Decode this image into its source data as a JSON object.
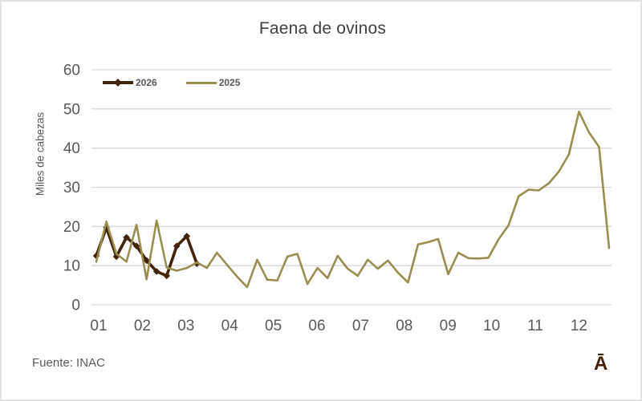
{
  "chart": {
    "title": "Faena de ovinos",
    "y_axis_title": "Miles de cabezas",
    "source": "Fuente: INAC",
    "watermark": "Ā",
    "colors": {
      "grid": "#d9d9d9",
      "title_text": "#404040",
      "axis_text": "#595959",
      "series_2026": "#44230d",
      "series_2025": "#9a8e4f"
    }
  },
  "chart_data": {
    "type": "line",
    "title": "Faena de ovinos",
    "ylabel": "Miles de cabezas",
    "xlabel": "",
    "x_unit": "weekly points across one year (52 weeks)",
    "x_tick_labels": [
      "01",
      "02",
      "03",
      "04",
      "05",
      "06",
      "07",
      "08",
      "09",
      "10",
      "11",
      "12"
    ],
    "y_ticks": [
      0,
      10,
      20,
      30,
      40,
      50,
      60
    ],
    "ylim": [
      0,
      60
    ],
    "grid": "horizontal",
    "legend_position": "top-left-inside",
    "series": [
      {
        "name": "2026",
        "color": "#44230d",
        "marker": "diamond",
        "values": [
          12.5,
          19.7,
          12.3,
          17.2,
          15.0,
          11.3,
          8.5,
          7.4,
          15.0,
          17.5,
          10.5
        ]
      },
      {
        "name": "2025",
        "color": "#9a8e4f",
        "marker": "none",
        "values": [
          11.0,
          21.2,
          13.0,
          11.0,
          20.4,
          6.5,
          21.5,
          9.5,
          8.7,
          9.4,
          10.8,
          9.4,
          13.3,
          10.2,
          7.2,
          4.5,
          11.5,
          6.4,
          6.2,
          12.3,
          13.0,
          5.3,
          9.4,
          6.8,
          12.5,
          9.2,
          7.4,
          11.5,
          9.2,
          11.3,
          8.2,
          5.7,
          15.4,
          16.0,
          16.8,
          7.8,
          13.3,
          11.9,
          11.8,
          12.0,
          16.7,
          20.3,
          27.7,
          29.4,
          29.2,
          31.0,
          34.0,
          38.4,
          49.3,
          44.0,
          40.3,
          14.5
        ]
      }
    ]
  }
}
